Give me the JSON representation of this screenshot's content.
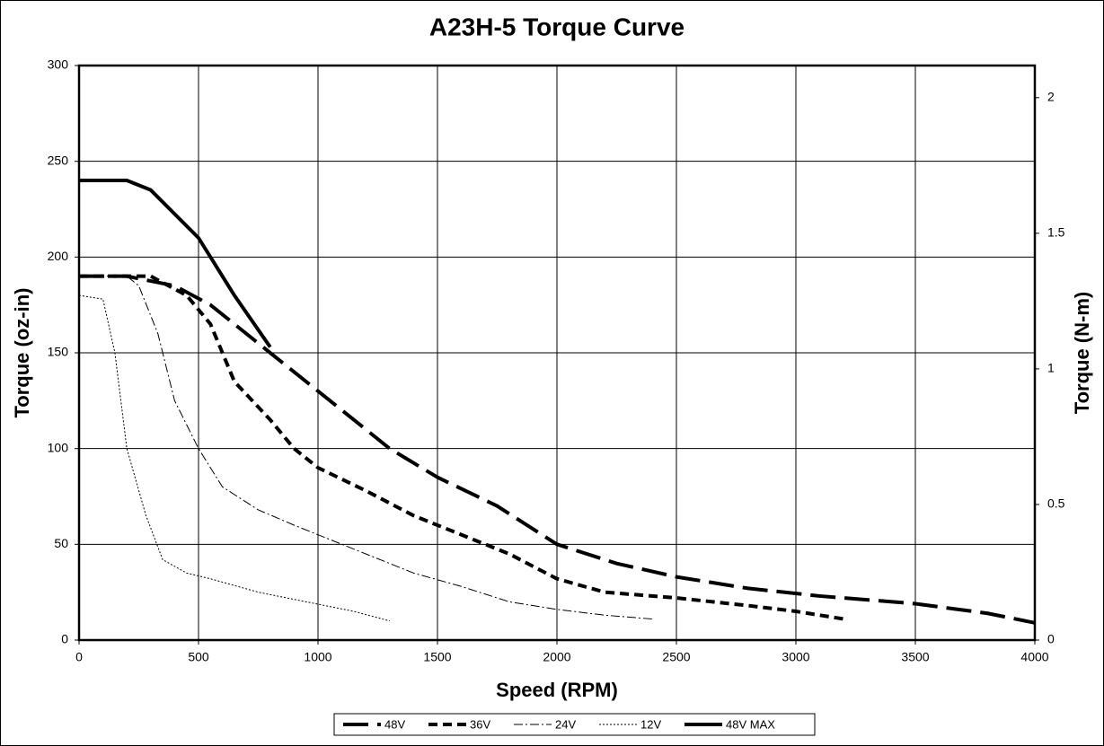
{
  "chart_data": {
    "type": "line",
    "title": "A23H-5 Torque Curve",
    "x_label": "Speed (RPM)",
    "y_label": "Torque (oz-in)",
    "y2_label": "Torque (N-m)",
    "xlim": [
      0,
      4000
    ],
    "xticks": [
      0,
      500,
      1000,
      1500,
      2000,
      2500,
      3000,
      3500,
      4000
    ],
    "ylim": [
      0,
      300
    ],
    "yticks": [
      0,
      50,
      100,
      150,
      200,
      250,
      300
    ],
    "y2lim": [
      0,
      2.1185
    ],
    "y2ticks": [
      0,
      0.5,
      1,
      1.5,
      2
    ],
    "grid": true,
    "legend": "bottom",
    "series": [
      {
        "name": "48V",
        "color": "#000000",
        "dash": "28 10",
        "width": 4,
        "x": [
          0,
          200,
          400,
          550,
          750,
          900,
          1100,
          1300,
          1500,
          1750,
          2000,
          2250,
          2500,
          2800,
          3100,
          3500,
          3800,
          4000
        ],
        "values": [
          190,
          190,
          185,
          175,
          155,
          140,
          120,
          100,
          85,
          70,
          50,
          40,
          33,
          27,
          23,
          19,
          14,
          9
        ]
      },
      {
        "name": "36V",
        "color": "#000000",
        "dash": "10 6",
        "width": 4,
        "x": [
          0,
          300,
          450,
          550,
          650,
          800,
          900,
          1000,
          1200,
          1400,
          1600,
          1800,
          2000,
          2200,
          2500,
          2800,
          3000,
          3200
        ],
        "values": [
          190,
          190,
          180,
          165,
          135,
          115,
          100,
          90,
          78,
          65,
          55,
          45,
          32,
          25,
          22,
          18,
          15,
          11
        ]
      },
      {
        "name": "24V",
        "color": "#000000",
        "dash": "10 3 2 3",
        "width": 1,
        "x": [
          0,
          200,
          250,
          330,
          400,
          500,
          600,
          750,
          900,
          1000,
          1200,
          1400,
          1600,
          1800,
          2000,
          2200,
          2400
        ],
        "values": [
          190,
          190,
          185,
          160,
          125,
          100,
          80,
          68,
          60,
          55,
          45,
          35,
          28,
          20,
          16,
          13,
          11
        ]
      },
      {
        "name": "12V",
        "color": "#000000",
        "dash": "2 2",
        "width": 1,
        "x": [
          0,
          100,
          150,
          200,
          280,
          350,
          450,
          550,
          750,
          950,
          1150,
          1300
        ],
        "values": [
          180,
          178,
          150,
          100,
          65,
          42,
          35,
          32,
          25,
          20,
          15,
          10
        ]
      },
      {
        "name": "48V MAX",
        "color": "#000000",
        "dash": "none",
        "width": 4,
        "x": [
          0,
          200,
          300,
          500,
          650,
          800
        ],
        "values": [
          240,
          240,
          235,
          210,
          180,
          153
        ]
      }
    ]
  }
}
